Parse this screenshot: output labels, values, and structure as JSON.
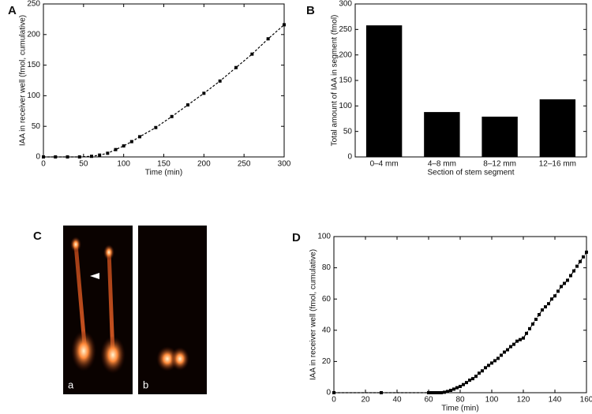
{
  "chart_data": [
    {
      "type": "line",
      "panel": "A",
      "xlabel": "Time (min)",
      "ylabel": "IAA in receiver well (fmol, cumulative)",
      "x": [
        0,
        15,
        30,
        45,
        60,
        70,
        80,
        90,
        100,
        110,
        120,
        140,
        160,
        180,
        200,
        220,
        240,
        260,
        280,
        300
      ],
      "series": [
        {
          "color": "#000000",
          "values": [
            0,
            0,
            0,
            0,
            1,
            3,
            6,
            12,
            18,
            25,
            33,
            48,
            66,
            85,
            104,
            124,
            146,
            168,
            193,
            216
          ]
        }
      ],
      "xlim": [
        0,
        300
      ],
      "ylim": [
        0,
        250
      ],
      "xticks": [
        0,
        50,
        100,
        150,
        200,
        250,
        300
      ],
      "yticks": [
        0,
        50,
        100,
        150,
        200,
        250
      ]
    },
    {
      "type": "bar",
      "panel": "B",
      "xlabel": "Section of stem segment",
      "ylabel": "Total amount of IAA in segment (fmol)",
      "categories": [
        "0–4 mm",
        "4–8 mm",
        "8–12 mm",
        "12–16 mm"
      ],
      "values": [
        258,
        88,
        79,
        113
      ],
      "color": "#000000",
      "ylim": [
        0,
        300
      ],
      "yticks": [
        0,
        50,
        100,
        150,
        200,
        250,
        300
      ]
    },
    {
      "type": "line",
      "panel": "D",
      "xlabel": "Time (min)",
      "ylabel": "IAA in receiver well (fmol, cumulative)",
      "x": [
        0,
        30,
        60,
        62,
        64,
        66,
        68,
        70,
        72,
        74,
        76,
        78,
        80,
        82,
        84,
        86,
        88,
        90,
        92,
        94,
        96,
        98,
        100,
        102,
        104,
        106,
        108,
        110,
        112,
        114,
        116,
        118,
        120,
        122,
        124,
        126,
        128,
        130,
        132,
        134,
        136,
        138,
        140,
        142,
        144,
        146,
        148,
        150,
        152,
        154,
        156,
        158,
        160
      ],
      "series": [
        {
          "color": "#000000",
          "values": [
            0,
            0,
            0,
            0,
            0,
            0,
            0,
            0.3,
            0.8,
            1.5,
            2.3,
            3.2,
            4,
            5.2,
            6.5,
            8,
            9,
            10.5,
            12.5,
            14,
            16,
            17.5,
            19,
            20.5,
            22,
            24,
            26,
            27.5,
            29.5,
            31,
            33,
            34,
            35,
            38,
            41,
            44,
            47,
            50,
            53,
            55,
            57,
            60,
            62,
            65,
            68,
            70,
            72,
            75,
            78,
            81,
            84,
            87,
            90
          ]
        }
      ],
      "xlim": [
        0,
        160
      ],
      "ylim": [
        0,
        100
      ],
      "xticks": [
        0,
        20,
        40,
        60,
        80,
        100,
        120,
        140,
        160
      ],
      "yticks": [
        0,
        20,
        40,
        60,
        80,
        100
      ]
    }
  ],
  "image_panel": {
    "panel": "C",
    "sublabels": [
      "a",
      "b"
    ]
  }
}
